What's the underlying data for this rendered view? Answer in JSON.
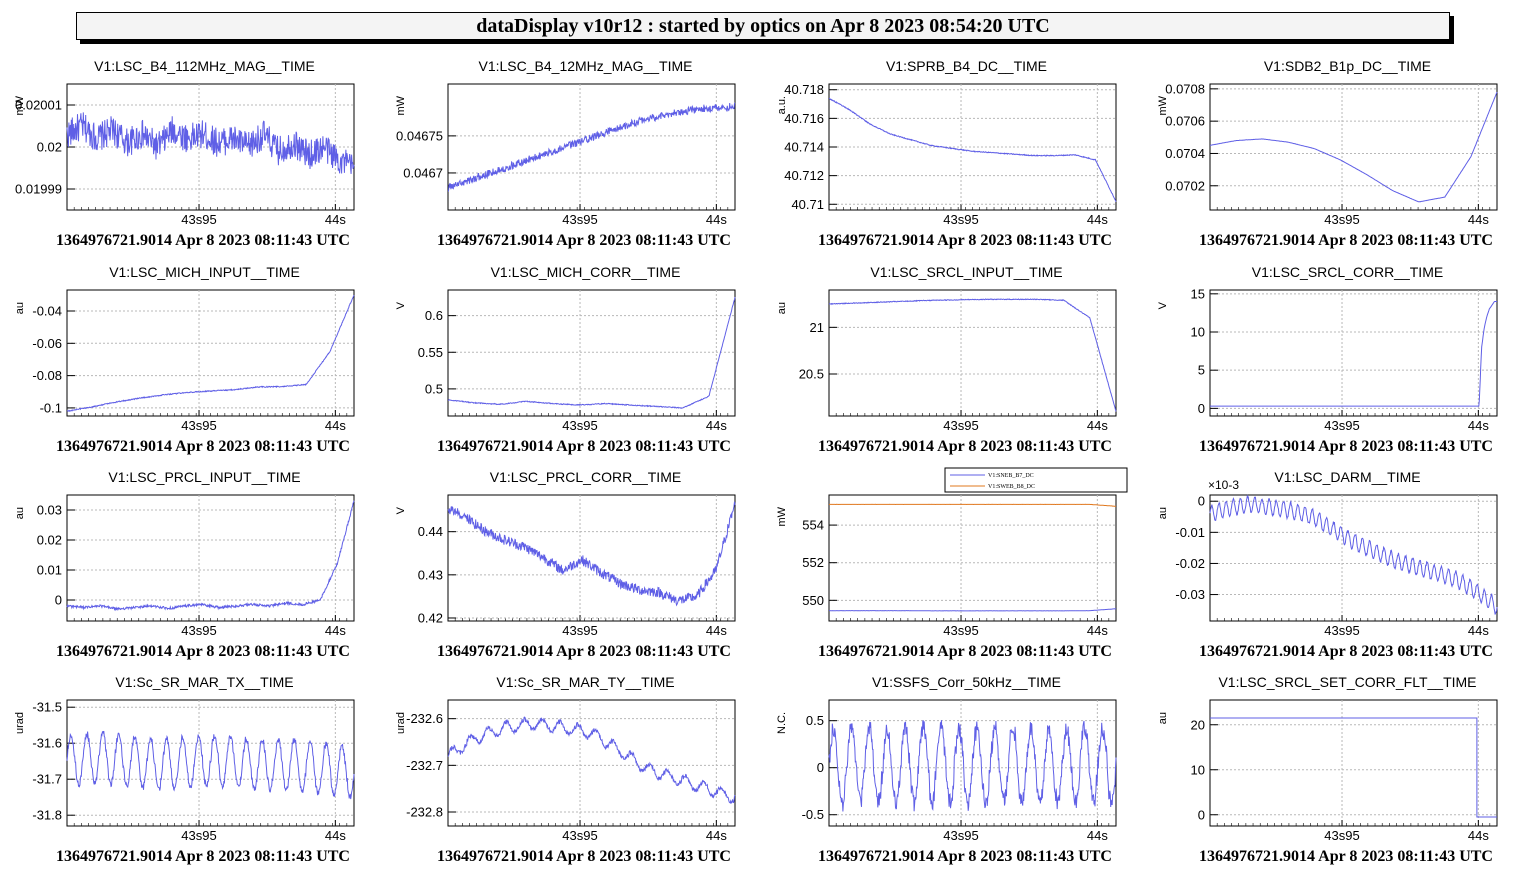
{
  "header": {
    "title": "dataDisplay v10r12 : started by optics on Apr  8 2023 08:54:20 UTC"
  },
  "colors": {
    "trace": "#5f5fe6",
    "trace2": "#e0781e",
    "grid": "#b8b8b8"
  },
  "chart_data": [
    {
      "type": "line",
      "title": "V1:LSC_B4_112MHz_MAG__TIME",
      "ylabel": "mW",
      "footer": "1364976721.9014 Apr 8 2023 08:11:43 UTC",
      "x_ticks": [
        "43s95",
        "44s"
      ],
      "y_ticks": [
        "0.01999",
        "0.02",
        "0.02001"
      ],
      "ylim": [
        0.019985,
        0.020015
      ],
      "grid": true,
      "series": [
        {
          "values": [
            0.020003,
            0.020005,
            0.020002,
            0.020004,
            0.020001,
            0.020003,
            0.02,
            0.020004,
            0.020002,
            0.020003,
            0.020001,
            0.020002,
            0.02,
            0.020003,
            0.019999,
            0.020001,
            0.019998,
            0.02,
            0.019997,
            0.019995
          ],
          "noise": 3.5e-06
        }
      ]
    },
    {
      "type": "line",
      "title": "V1:LSC_B4_12MHz_MAG__TIME",
      "ylabel": "mW",
      "footer": "1364976721.9014 Apr 8 2023 08:11:43 UTC",
      "x_ticks": [
        "43s95",
        "44s"
      ],
      "y_ticks": [
        "0.0467",
        "0.04675"
      ],
      "ylim": [
        0.04665,
        0.04682
      ],
      "grid": true,
      "series": [
        {
          "values": [
            0.04668,
            0.046695,
            0.04671,
            0.046725,
            0.04674,
            0.046755,
            0.04677,
            0.04678,
            0.046787,
            0.04679
          ],
          "noise": 5e-06
        }
      ]
    },
    {
      "type": "line",
      "title": "V1:SPRB_B4_DC__TIME",
      "ylabel": "a.u.",
      "footer": "1364976721.9014 Apr 8 2023 08:11:43 UTC",
      "x_ticks": [
        "43s95",
        "44s"
      ],
      "y_ticks": [
        "40.71",
        "40.712",
        "40.714",
        "40.716",
        "40.718"
      ],
      "ylim": [
        40.7096,
        40.7184
      ],
      "grid": true,
      "series": [
        {
          "values": [
            40.7174,
            40.7166,
            40.7156,
            40.7149,
            40.7145,
            40.7141,
            40.7139,
            40.7137,
            40.7136,
            40.7135,
            40.7134,
            40.7134,
            40.71345,
            40.7131,
            40.7102
          ],
          "noise": 3e-05
        }
      ]
    },
    {
      "type": "line",
      "title": "V1:SDB2_B1p_DC__TIME",
      "ylabel": "mW",
      "footer": "1364976721.9014 Apr 8 2023 08:11:43 UTC",
      "x_ticks": [
        "43s95",
        "44s"
      ],
      "y_ticks": [
        "0.0702",
        "0.0704",
        "0.0706",
        "0.0708"
      ],
      "ylim": [
        0.07005,
        0.07083
      ],
      "grid": true,
      "series": [
        {
          "values": [
            0.07045,
            0.07048,
            0.07049,
            0.07047,
            0.07043,
            0.07036,
            0.07027,
            0.07017,
            0.0701,
            0.07013,
            0.07038,
            0.07078
          ],
          "noise": 5e-07
        }
      ]
    },
    {
      "type": "line",
      "title": "V1:LSC_MICH_INPUT__TIME",
      "ylabel": "au",
      "footer": "1364976721.9014 Apr 8 2023 08:11:43 UTC",
      "x_ticks": [
        "43s95",
        "44s"
      ],
      "y_ticks": [
        "-0.1",
        "-0.08",
        "-0.06",
        "-0.04"
      ],
      "ylim": [
        -0.105,
        -0.027
      ],
      "grid": true,
      "series": [
        {
          "values": [
            -0.102,
            -0.0995,
            -0.0965,
            -0.094,
            -0.092,
            -0.0905,
            -0.0895,
            -0.0887,
            -0.087,
            -0.0868,
            -0.0855,
            -0.065,
            -0.03
          ],
          "noise": 0.0003
        }
      ]
    },
    {
      "type": "line",
      "title": "V1:LSC_MICH_CORR__TIME",
      "ylabel": "V",
      "footer": "1364976721.9014 Apr 8 2023 08:11:43 UTC",
      "x_ticks": [
        "43s95",
        "44s"
      ],
      "y_ticks": [
        "0.5",
        "0.55",
        "0.6"
      ],
      "ylim": [
        0.463,
        0.635
      ],
      "grid": true,
      "series": [
        {
          "values": [
            0.485,
            0.481,
            0.479,
            0.483,
            0.48,
            0.478,
            0.48,
            0.478,
            0.476,
            0.474,
            0.49,
            0.625
          ],
          "noise": 0.0006
        }
      ]
    },
    {
      "type": "line",
      "title": "V1:LSC_SRCL_INPUT__TIME",
      "ylabel": "au",
      "footer": "1364976721.9014 Apr 8 2023 08:11:43 UTC",
      "x_ticks": [
        "43s95",
        "44s"
      ],
      "y_ticks": [
        "20.5",
        "21"
      ],
      "ylim": [
        20.05,
        21.4
      ],
      "grid": true,
      "series": [
        {
          "values": [
            21.25,
            21.26,
            21.27,
            21.28,
            21.29,
            21.295,
            21.3,
            21.3,
            21.3,
            21.29,
            21.1,
            20.1
          ],
          "noise": 0.004
        }
      ]
    },
    {
      "type": "line",
      "title": "V1:LSC_SRCL_CORR__TIME",
      "ylabel": "V",
      "footer": "1364976721.9014 Apr 8 2023 08:11:43 UTC",
      "x_ticks": [
        "43s95",
        "44s"
      ],
      "y_ticks": [
        "0",
        "5",
        "10",
        "15"
      ],
      "ylim": [
        -1,
        15.5
      ],
      "grid": true,
      "series": [
        {
          "values": [
            0.3,
            0.3,
            0.3,
            0.3,
            0.3,
            0.3,
            0.3,
            0.3,
            0.3,
            0.3,
            0.3,
            0.3,
            0.3,
            0.3,
            0.3,
            0.3,
            0.3,
            0.3,
            0.3,
            0.3,
            0.3,
            0.3,
            0.3,
            0.3,
            0.3,
            0.3,
            0.3,
            0.3,
            0.3,
            0.3,
            0.3,
            0.3,
            0.3,
            0.3,
            0.3,
            0.3,
            0.3,
            0.3,
            0.3,
            0.3,
            0.3,
            0.3,
            0.3,
            0.3,
            0.3,
            0.3,
            0.3,
            0.3,
            0.3,
            0.3,
            0.3,
            0.3,
            0.3,
            0.3,
            0.3,
            0.3,
            0.3,
            0.3,
            0.3,
            0.3,
            0.3,
            0.3,
            0.3,
            0.3,
            0.3,
            0.3,
            0.3,
            0.3,
            0.3,
            0.3,
            0.3,
            0.3,
            0.3,
            0.3,
            0.3,
            0.3,
            0.3,
            0.3,
            0.3,
            0.3,
            0.3,
            0.3,
            0.3,
            0.3,
            0.3,
            0.3,
            0.3,
            0.3,
            0.3,
            0.3,
            0.3,
            0.3,
            0.3,
            0.3,
            0.3,
            0.3,
            0.3,
            0.3,
            0.3,
            0.3,
            0.3,
            0.3,
            0.3,
            0.3,
            0.3,
            0.3,
            8,
            10.5,
            12,
            13,
            13.5,
            14,
            14
          ],
          "noise": 0
        }
      ]
    },
    {
      "type": "line",
      "title": "V1:LSC_PRCL_INPUT__TIME",
      "ylabel": "au",
      "footer": "1364976721.9014 Apr 8 2023 08:11:43 UTC",
      "x_ticks": [
        "43s95",
        "44s"
      ],
      "y_ticks": [
        "0",
        "0.01",
        "0.02",
        "0.03"
      ],
      "ylim": [
        -0.007,
        0.035
      ],
      "grid": true,
      "series": [
        {
          "values": [
            -0.002,
            -0.0025,
            -0.002,
            -0.003,
            -0.0025,
            -0.002,
            -0.0028,
            -0.002,
            -0.0015,
            -0.0025,
            -0.002,
            -0.0015,
            -0.002,
            -0.001,
            -0.0015,
            0.0,
            0.012,
            0.033
          ],
          "noise": 0.0004
        }
      ]
    },
    {
      "type": "line",
      "title": "V1:LSC_PRCL_CORR__TIME",
      "ylabel": "V",
      "footer": "1364976721.9014 Apr 8 2023 08:11:43 UTC",
      "x_ticks": [
        "43s95",
        "44s"
      ],
      "y_ticks": [
        "0.42",
        "0.43",
        "0.44"
      ],
      "ylim": [
        0.4193,
        0.4485
      ],
      "grid": true,
      "series": [
        {
          "values": [
            0.4455,
            0.443,
            0.44,
            0.438,
            0.4365,
            0.434,
            0.431,
            0.4335,
            0.4305,
            0.428,
            0.4265,
            0.426,
            0.424,
            0.425,
            0.431,
            0.4465
          ],
          "noise": 0.0012
        }
      ]
    },
    {
      "type": "line",
      "title": "",
      "ylabel": "mW",
      "footer": "1364976721.9014 Apr 8 2023 08:11:43 UTC",
      "x_ticks": [
        "43s95",
        "44s"
      ],
      "y_ticks": [
        "550",
        "552",
        "554"
      ],
      "ylim": [
        548.9,
        555.6
      ],
      "grid": true,
      "legend": "top-right",
      "series": [
        {
          "name": "V1:SNEB_B7_DC",
          "values": [
            549.45,
            549.45,
            549.45,
            549.45,
            549.44,
            549.44,
            549.44,
            549.44,
            549.44,
            549.44,
            549.45,
            549.55
          ],
          "noise": 0.003
        },
        {
          "name": "V1:SWEB_B8_DC",
          "values": [
            555.1,
            555.1,
            555.1,
            555.1,
            555.1,
            555.1,
            555.1,
            555.1,
            555.1,
            555.1,
            555.1,
            555.0
          ],
          "noise": 0.003
        }
      ]
    },
    {
      "type": "line",
      "title": "V1:LSC_DARM__TIME",
      "ylabel": "au",
      "y_exponent": "×10-3",
      "footer": "1364976721.9014 Apr 8 2023 08:11:43 UTC",
      "x_ticks": [
        "43s95",
        "44s"
      ],
      "y_ticks": [
        "-0.03",
        "-0.02",
        "-0.01",
        "0"
      ],
      "ylim": [
        -0.0385,
        0.002
      ],
      "grid": true,
      "series": [
        {
          "values": [
            -0.004,
            -0.002,
            -0.001,
            -0.002,
            -0.003,
            -0.005,
            -0.009,
            -0.013,
            -0.016,
            -0.019,
            -0.021,
            -0.023,
            -0.025,
            -0.029,
            -0.034
          ],
          "osc": 0.0025,
          "cycles": 40,
          "noise": 0.0004
        }
      ]
    },
    {
      "type": "line",
      "title": "V1:Sc_SR_MAR_TX__TIME",
      "ylabel": "urad",
      "footer": "1364976721.9014 Apr 8 2023 08:11:43 UTC",
      "x_ticks": [
        "43s95",
        "44s"
      ],
      "y_ticks": [
        "-31.8",
        "-31.7",
        "-31.6",
        "-31.5"
      ],
      "ylim": [
        -31.83,
        -31.48
      ],
      "grid": true,
      "series": [
        {
          "values": [
            -31.65,
            -31.64,
            -31.65,
            -31.66,
            -31.65,
            -31.65,
            -31.66,
            -31.66,
            -31.67,
            -31.68
          ],
          "osc": 0.07,
          "cycles": 18,
          "noise": 0.008
        }
      ]
    },
    {
      "type": "line",
      "title": "V1:Sc_SR_MAR_TY__TIME",
      "ylabel": "urad",
      "footer": "1364976721.9014 Apr 8 2023 08:11:43 UTC",
      "x_ticks": [
        "43s95",
        "44s"
      ],
      "y_ticks": [
        "-232.8",
        "-232.7",
        "-232.6"
      ],
      "ylim": [
        -232.83,
        -232.56
      ],
      "grid": true,
      "series": [
        {
          "values": [
            -232.68,
            -232.64,
            -232.62,
            -232.61,
            -232.62,
            -232.63,
            -232.67,
            -232.71,
            -232.73,
            -232.75,
            -232.77
          ],
          "osc": 0.012,
          "cycles": 16,
          "noise": 0.005
        }
      ]
    },
    {
      "type": "line",
      "title": "V1:SSFS_Corr_50kHz__TIME",
      "ylabel": "N.C.",
      "footer": "1364976721.9014 Apr 8 2023 08:11:43 UTC",
      "x_ticks": [
        "43s95",
        "44s"
      ],
      "y_ticks": [
        "-0.5",
        "0",
        "0.5"
      ],
      "ylim": [
        -0.62,
        0.72
      ],
      "grid": true,
      "series": [
        {
          "values": [
            0.0,
            0.05,
            0.0,
            0.05,
            0.0,
            0.05,
            0.0,
            0.05,
            0.0
          ],
          "osc": 0.4,
          "cycles": 16,
          "noise": 0.09
        }
      ]
    },
    {
      "type": "line",
      "title": "V1:LSC_SRCL_SET_CORR_FLT__TIME",
      "ylabel": "au",
      "footer": "1364976721.9014 Apr 8 2023 08:11:43 UTC",
      "x_ticks": [
        "43s95",
        "44s"
      ],
      "y_ticks": [
        "0",
        "10",
        "20"
      ],
      "ylim": [
        -2.5,
        25.5
      ],
      "grid": true,
      "series": [
        {
          "values": [
            21.5,
            21.5,
            21.5,
            21.5,
            21.5,
            21.5,
            21.5,
            21.5,
            21.5,
            21.5,
            21.5,
            21.5,
            21.5,
            21.5,
            21.5,
            21.5,
            21.5,
            21.5,
            21.5,
            21.5,
            21.5,
            21.5,
            21.5,
            21.5,
            21.5,
            21.5,
            21.5,
            21.5,
            21.5,
            21.5,
            21.5,
            21.5,
            21.5,
            21.5,
            21.5,
            21.5,
            21.5,
            21.5,
            21.5,
            21.5,
            21.5,
            21.5,
            21.5,
            21.5,
            21.5,
            21.5,
            21.5,
            21.5,
            21.5,
            21.5,
            21.5,
            21.5,
            21.5,
            21.5,
            21.5,
            21.5,
            21.5,
            21.5,
            21.5,
            21.5,
            21.5,
            21.5,
            21.5,
            21.5,
            21.5,
            21.5,
            21.5,
            21.5,
            21.5,
            21.5,
            21.5,
            21.5,
            21.5,
            21.5,
            21.5,
            21.5,
            21.5,
            21.5,
            21.5,
            21.5,
            21.5,
            21.5,
            21.5,
            21.5,
            21.5,
            21.5,
            21.5,
            21.5,
            21.5,
            21.5,
            21.5,
            21.5,
            21.5,
            21.5,
            21.5,
            21.5,
            21.5,
            21.5,
            21.5,
            21.5,
            21.5,
            21.5,
            21.5,
            21.5,
            21.5,
            21.5,
            -0.5,
            -0.5,
            -0.5,
            -0.5,
            -0.5,
            -0.5,
            -0.5,
            -0.5
          ],
          "noise": 0,
          "step": true
        }
      ]
    }
  ]
}
